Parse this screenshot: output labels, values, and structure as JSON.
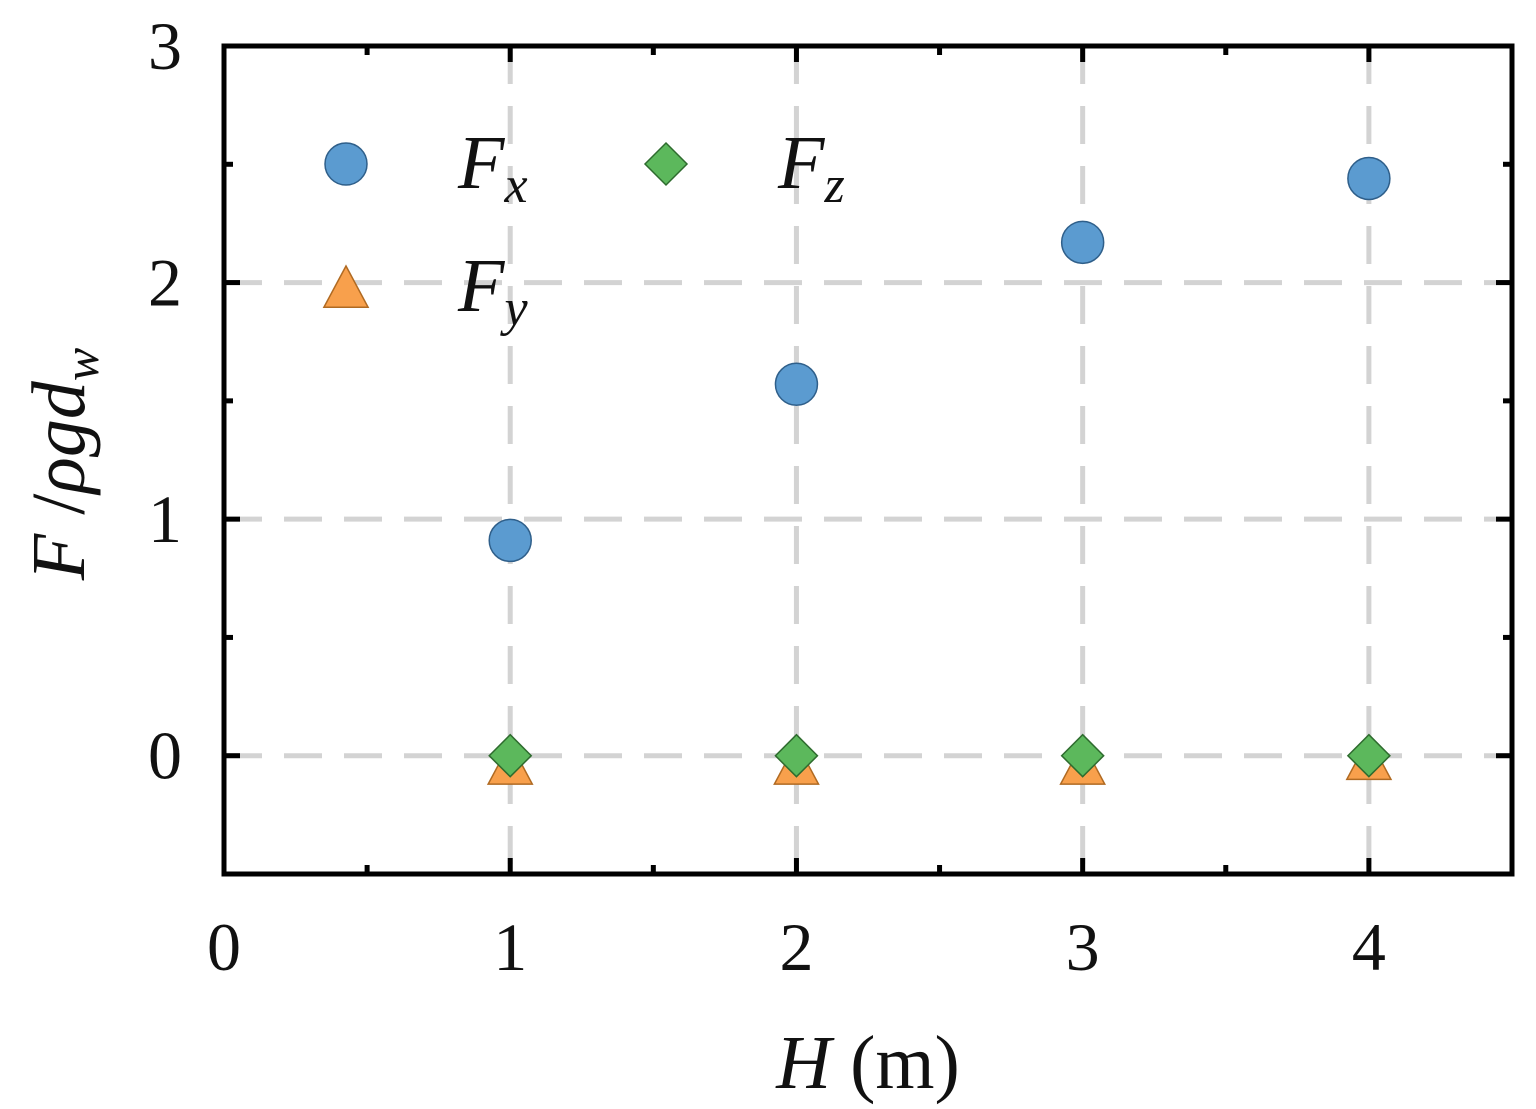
{
  "chart_data": {
    "type": "scatter",
    "title": "",
    "xlabel": {
      "symbol": "H",
      "unit": " (m)"
    },
    "ylabel": {
      "numerator": "F",
      "slash": " /",
      "rho_g": "ρg",
      "d": "d",
      "subscript": "w"
    },
    "xlim": [
      0,
      4.5
    ],
    "ylim": [
      -0.5,
      3
    ],
    "x_major_ticks": [
      0,
      1,
      2,
      3,
      4
    ],
    "x_tick_labels": [
      "0",
      "1",
      "2",
      "3",
      "4"
    ],
    "x_minor_ticks": [
      0.5,
      1.5,
      2.5,
      3.5
    ],
    "y_major_ticks": [
      0,
      1,
      2,
      3
    ],
    "y_tick_labels": [
      "0",
      "1",
      "2",
      "3"
    ],
    "y_minor_ticks": [
      -0.5,
      0.5,
      1.5,
      2.5
    ],
    "grid": true,
    "legend_placement": "top-left, two columns",
    "series": [
      {
        "name": "F",
        "subscript": "x",
        "marker": "circle",
        "color": "#5b9bd0",
        "edge_color": "#2f5f8a",
        "x": [
          1,
          2,
          3,
          4
        ],
        "y": [
          0.91,
          1.57,
          2.17,
          2.44
        ]
      },
      {
        "name": "F",
        "subscript": "y",
        "marker": "triangle",
        "color": "#f8a04c",
        "edge_color": "#b06a22",
        "x": [
          1,
          2,
          3,
          4
        ],
        "y": [
          -0.03,
          -0.03,
          -0.03,
          -0.01
        ]
      },
      {
        "name": "F",
        "subscript": "z",
        "marker": "diamond",
        "color": "#5cb85c",
        "edge_color": "#2e6b2e",
        "x": [
          1,
          2,
          3,
          4
        ],
        "y": [
          0.0,
          0.0,
          0.0,
          0.0
        ]
      }
    ]
  }
}
